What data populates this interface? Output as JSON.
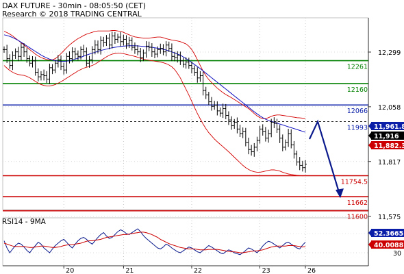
{
  "header": {
    "title": "DAX FUTURE - 30min - 08:05:50 (CET)",
    "credit": "Research © 2018 TRADING CENTRAL"
  },
  "rsi_panel": {
    "label": "RSI14 - 9MA"
  },
  "colors": {
    "candles": "#000000",
    "bollinger": "#d40000",
    "ma": "#1010c0",
    "green_level": "#008000",
    "blue_level": "#0a1ea8",
    "red_level": "#cc0000",
    "forecast_arrow": "#0a1a8c",
    "rsi_line": "#0a1a8c",
    "rsi_ma": "#cc0000",
    "price_badge_blue": "#0a1ea8",
    "price_badge_black": "#000000",
    "price_badge_red": "#cc0000"
  },
  "chart_data": [
    {
      "type": "candlestick",
      "ylim": [
        11500,
        12420
      ],
      "x_tick_labels": [
        "20",
        "21",
        "22",
        "23",
        "26"
      ],
      "y_tick_labels": [
        12299,
        12058,
        11817,
        11575
      ],
      "levels": [
        {
          "value": 12261,
          "label": "12261",
          "color": "green_level",
          "style": "solid"
        },
        {
          "value": 12160,
          "label": "12160",
          "color": "green_level",
          "style": "solid"
        },
        {
          "value": 12066,
          "label": "12066",
          "color": "blue_level",
          "style": "solid"
        },
        {
          "value": 11993,
          "label": "11993",
          "color": "blue_level",
          "style": "dashed-black"
        },
        {
          "value": 11754.5,
          "label": "11754.5",
          "color": "red_level",
          "style": "solid"
        },
        {
          "value": 11662,
          "label": "11662",
          "color": "red_level",
          "style": "solid"
        },
        {
          "value": 11600,
          "label": "11600",
          "color": "red_level",
          "style": "solid"
        }
      ],
      "price_badges": [
        {
          "value": 11961.8,
          "label": "11,961.8",
          "color": "price_badge_blue"
        },
        {
          "value": 11916,
          "label": "11,916",
          "color": "price_badge_black"
        },
        {
          "value": 11882.3,
          "label": "11,882.3",
          "color": "price_badge_red"
        }
      ],
      "close": [
        12310,
        12270,
        12240,
        12285,
        12300,
        12280,
        12320,
        12300,
        12270,
        12250,
        12260,
        12210,
        12190,
        12200,
        12195,
        12180,
        12230,
        12220,
        12250,
        12265,
        12235,
        12220,
        12280,
        12270,
        12300,
        12290,
        12280,
        12310,
        12300,
        12250,
        12265,
        12310,
        12330,
        12310,
        12350,
        12340,
        12360,
        12330,
        12370,
        12355,
        12365,
        12345,
        12355,
        12335,
        12350,
        12320,
        12310,
        12300,
        12275,
        12295,
        12325,
        12320,
        12300,
        12290,
        12310,
        12315,
        12300,
        12330,
        12315,
        12280,
        12275,
        12285,
        12260,
        12245,
        12255,
        12240,
        12225,
        12210,
        12185,
        12195,
        12130,
        12110,
        12080,
        12060,
        12065,
        12040,
        12030,
        12050,
        12020,
        12000,
        11975,
        11990,
        11960,
        11940,
        11950,
        11900,
        11870,
        11860,
        11880,
        11910,
        11960,
        11950,
        11920,
        11940,
        11990,
        11985,
        11960,
        11920,
        11880,
        11900,
        11940,
        11890,
        11850,
        11815,
        11800,
        11790,
        11805
      ],
      "upper_band": [
        12390,
        12385,
        12378,
        12370,
        12360,
        12350,
        12340,
        12330,
        12320,
        12310,
        12300,
        12290,
        12282,
        12275,
        12270,
        12266,
        12264,
        12265,
        12270,
        12280,
        12292,
        12305,
        12318,
        12330,
        12340,
        12350,
        12358,
        12365,
        12372,
        12378,
        12382,
        12386,
        12390,
        12392,
        12392,
        12392,
        12392,
        12392,
        12394,
        12394,
        12392,
        12390,
        12386,
        12380,
        12375,
        12370,
        12366,
        12364,
        12362,
        12360,
        12360,
        12360,
        12362,
        12364,
        12365,
        12365,
        12362,
        12358,
        12355,
        12352,
        12350,
        12348,
        12345,
        12340,
        12335,
        12325,
        12310,
        12290,
        12265,
        12240,
        12215,
        12195,
        12178,
        12165,
        12152,
        12140,
        12130,
        12120,
        12112,
        12105,
        12098,
        12090,
        12082,
        12074,
        12066,
        12058,
        12050,
        12040,
        12028,
        12018,
        12010,
        12006,
        12006,
        12010,
        12016,
        12020,
        12022,
        12022,
        12020,
        12018,
        12016,
        12014,
        12012,
        12010,
        12009,
        12008,
        12007
      ],
      "lower_band": [
        12240,
        12228,
        12218,
        12210,
        12204,
        12200,
        12198,
        12196,
        12192,
        12186,
        12178,
        12170,
        12162,
        12156,
        12152,
        12150,
        12150,
        12152,
        12156,
        12162,
        12168,
        12176,
        12184,
        12192,
        12200,
        12208,
        12216,
        12222,
        12228,
        12232,
        12236,
        12240,
        12246,
        12254,
        12262,
        12270,
        12278,
        12285,
        12290,
        12293,
        12294,
        12294,
        12292,
        12289,
        12286,
        12283,
        12280,
        12276,
        12272,
        12268,
        12265,
        12263,
        12261,
        12259,
        12257,
        12255,
        12252,
        12248,
        12242,
        12234,
        12222,
        12205,
        12185,
        12160,
        12135,
        12110,
        12082,
        12055,
        12028,
        12005,
        11982,
        11962,
        11944,
        11930,
        11916,
        11904,
        11893,
        11882,
        11871,
        11860,
        11848,
        11836,
        11824,
        11812,
        11800,
        11790,
        11782,
        11776,
        11772,
        11770,
        11770,
        11772,
        11775,
        11778,
        11780,
        11780,
        11778,
        11775,
        11770,
        11766,
        11762,
        11760,
        11758,
        11756,
        11755,
        11754,
        11755
      ],
      "moving_average": [
        12375,
        12372,
        12368,
        12363,
        12357,
        12350,
        12342,
        12334,
        12326,
        12318,
        12310,
        12302,
        12294,
        12286,
        12279,
        12273,
        12268,
        12264,
        12261,
        12259,
        12258,
        12258,
        12259,
        12261,
        12264,
        12268,
        12272,
        12276,
        12281,
        12286,
        12290,
        12294,
        12298,
        12302,
        12306,
        12309,
        12312,
        12315,
        12318,
        12320,
        12322,
        12324,
        12325,
        12326,
        12327,
        12327,
        12327,
        12326,
        12325,
        12324,
        12323,
        12322,
        12320,
        12318,
        12316,
        12314,
        12311,
        12308,
        12304,
        12300,
        12295,
        12290,
        12285,
        12278,
        12270,
        12262,
        12253,
        12244,
        12235,
        12226,
        12216,
        12206,
        12196,
        12186,
        12176,
        12166,
        12156,
        12146,
        12136,
        12126,
        12116,
        12106,
        12096,
        12086,
        12076,
        12066,
        12056,
        12046,
        12036,
        12027,
        12018,
        12010,
        12003,
        11998,
        11994,
        11990,
        11986,
        11982,
        11978,
        11974,
        11970,
        11966,
        11962,
        11958,
        11954,
        11950,
        11946
      ],
      "forecast_path": [
        {
          "value": 11916
        },
        {
          "value": 11993
        },
        {
          "value": 11662
        }
      ]
    },
    {
      "type": "line",
      "name": "RSI14",
      "ylim": [
        0,
        100
      ],
      "y_tick_labels": [
        30
      ],
      "badges": [
        {
          "value": 52.3665,
          "label": "52.3665",
          "color": "price_badge_blue"
        },
        {
          "value": 40.0088,
          "label": "40.0088",
          "color": "price_badge_red"
        }
      ],
      "rsi": [
        55,
        40,
        30,
        38,
        45,
        50,
        48,
        42,
        35,
        30,
        38,
        45,
        52,
        48,
        40,
        35,
        30,
        38,
        45,
        50,
        55,
        58,
        52,
        45,
        40,
        48,
        55,
        60,
        62,
        58,
        52,
        48,
        55,
        62,
        68,
        72,
        65,
        60,
        62,
        68,
        74,
        78,
        75,
        70,
        68,
        72,
        76,
        80,
        74,
        66,
        60,
        55,
        50,
        45,
        40,
        38,
        42,
        48,
        45,
        40,
        36,
        32,
        30,
        34,
        38,
        42,
        40,
        36,
        32,
        30,
        35,
        40,
        45,
        42,
        38,
        34,
        30,
        28,
        32,
        36,
        34,
        30,
        28,
        26,
        30,
        35,
        40,
        38,
        34,
        30,
        36,
        44,
        50,
        54,
        52,
        48,
        44,
        40,
        45,
        50,
        52,
        48,
        44,
        40,
        38,
        46,
        52
      ],
      "rsi_ma": [
        50,
        48,
        46,
        44,
        43,
        43,
        43,
        43,
        42,
        41,
        41,
        42,
        43,
        44,
        44,
        43,
        42,
        41,
        41,
        42,
        43,
        45,
        46,
        47,
        47,
        48,
        49,
        50,
        52,
        54,
        55,
        55,
        56,
        57,
        58,
        60,
        62,
        63,
        64,
        65,
        66,
        67,
        68,
        68,
        69,
        70,
        71,
        72,
        73,
        73,
        72,
        70,
        68,
        65,
        62,
        58,
        55,
        52,
        49,
        47,
        45,
        43,
        41,
        40,
        39,
        38,
        38,
        38,
        37,
        36,
        36,
        36,
        37,
        37,
        37,
        37,
        36,
        35,
        34,
        33,
        32,
        32,
        31,
        30,
        30,
        31,
        32,
        33,
        34,
        34,
        35,
        36,
        38,
        40,
        42,
        43,
        44,
        44,
        44,
        44,
        45,
        45,
        45,
        44,
        43,
        42,
        43
      ]
    }
  ]
}
